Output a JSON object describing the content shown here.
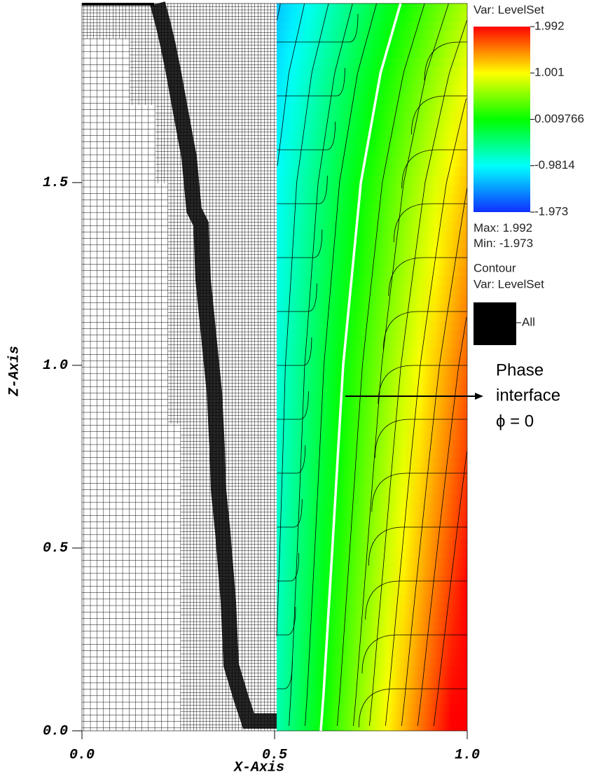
{
  "chart_data": {
    "type": "field",
    "xlabel": "X-Axis",
    "ylabel": "Z-Axis",
    "xlim": [
      0,
      1
    ],
    "ylim": [
      0,
      1.99
    ],
    "xticks": [
      {
        "value": 0,
        "label": "0.0"
      },
      {
        "value": 0.5,
        "label": "0.5"
      },
      {
        "value": 1,
        "label": "1.0"
      }
    ],
    "yticks": [
      {
        "value": 0,
        "label": "0.0"
      },
      {
        "value": 0.5,
        "label": "0.5"
      },
      {
        "value": 1,
        "label": "1.0"
      },
      {
        "value": 1.5,
        "label": "1.5"
      }
    ],
    "interface": {
      "color": "#ffffff",
      "x": [
        0.62,
        0.627,
        0.65,
        0.678,
        0.724,
        0.775,
        0.827
      ],
      "z": [
        0,
        0.1,
        0.5,
        1.0,
        1.5,
        1.8,
        1.99
      ]
    },
    "colorbar": {
      "title": "Var: LevelSet",
      "lim": [
        -1.973,
        1.992
      ],
      "ticks": [
        1.992,
        1.001,
        0.009766,
        -0.9814,
        -1.973
      ],
      "max_label": "Max:",
      "max": 1.992,
      "min_label": "Min:",
      "min": -1.973
    },
    "contour_legend": {
      "title": "Contour",
      "var": "Var: LevelSet",
      "entry": "All"
    },
    "annotation": {
      "lines": [
        "Phase",
        "interface",
        "ϕ = 0"
      ]
    }
  }
}
